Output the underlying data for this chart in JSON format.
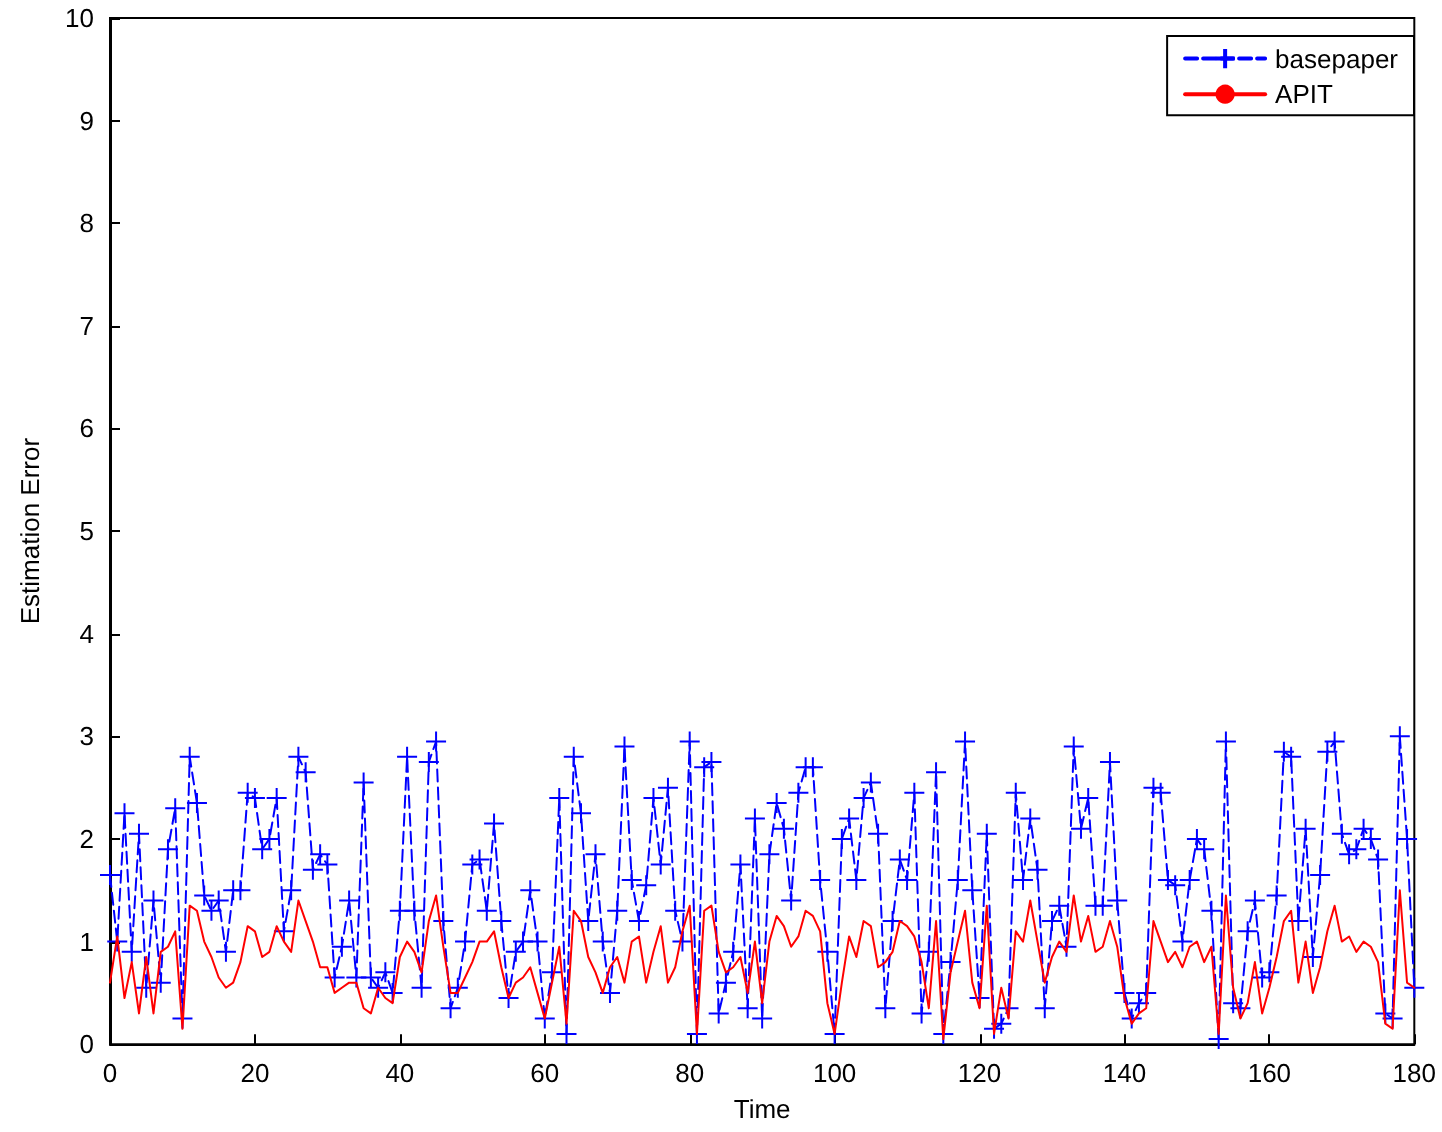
{
  "chart_data": {
    "type": "line",
    "xlabel": "Time",
    "ylabel": "Estimation Error",
    "x": [
      0,
      1,
      2,
      3,
      4,
      5,
      6,
      7,
      8,
      9,
      10,
      11,
      12,
      13,
      14,
      15,
      16,
      17,
      18,
      19,
      20,
      21,
      22,
      23,
      24,
      25,
      26,
      27,
      28,
      29,
      30,
      31,
      32,
      33,
      34,
      35,
      36,
      37,
      38,
      39,
      40,
      41,
      42,
      43,
      44,
      45,
      46,
      47,
      48,
      49,
      50,
      51,
      52,
      53,
      54,
      55,
      56,
      57,
      58,
      59,
      60,
      61,
      62,
      63,
      64,
      65,
      66,
      67,
      68,
      69,
      70,
      71,
      72,
      73,
      74,
      75,
      76,
      77,
      78,
      79,
      80,
      81,
      82,
      83,
      84,
      85,
      86,
      87,
      88,
      89,
      90,
      91,
      92,
      93,
      94,
      95,
      96,
      97,
      98,
      99,
      100,
      101,
      102,
      103,
      104,
      105,
      106,
      107,
      108,
      109,
      110,
      111,
      112,
      113,
      114,
      115,
      116,
      117,
      118,
      119,
      120,
      121,
      122,
      123,
      124,
      125,
      126,
      127,
      128,
      129,
      130,
      131,
      132,
      133,
      134,
      135,
      136,
      137,
      138,
      139,
      140,
      141,
      142,
      143,
      144,
      145,
      146,
      147,
      148,
      149,
      150,
      151,
      152,
      153,
      154,
      155,
      156,
      157,
      158,
      159,
      160,
      161,
      162,
      163,
      164,
      165,
      166,
      167,
      168,
      169,
      170,
      171,
      172,
      173,
      174,
      175,
      176,
      177,
      178,
      179,
      180
    ],
    "series": [
      {
        "name": "basepaper",
        "color": "#0000ff",
        "line_style": "dashed",
        "marker": "cross",
        "values": [
          1.65,
          1.0,
          2.25,
          0.9,
          2.05,
          0.55,
          1.4,
          0.6,
          1.9,
          2.3,
          0.25,
          2.8,
          2.35,
          1.45,
          1.3,
          1.4,
          0.9,
          1.5,
          1.5,
          2.45,
          2.4,
          1.9,
          2.0,
          2.4,
          1.1,
          1.5,
          2.8,
          2.65,
          1.7,
          1.85,
          1.75,
          0.65,
          0.95,
          1.4,
          0.65,
          2.55,
          0.65,
          0.55,
          0.7,
          0.5,
          1.3,
          2.8,
          1.3,
          0.55,
          2.75,
          2.95,
          1.2,
          0.35,
          0.55,
          1.0,
          1.75,
          1.8,
          1.3,
          2.15,
          1.2,
          0.45,
          0.9,
          1.0,
          1.5,
          1.0,
          0.25,
          0.7,
          2.4,
          0.1,
          2.8,
          2.25,
          1.2,
          1.85,
          1.0,
          0.5,
          1.3,
          2.9,
          1.6,
          1.2,
          1.55,
          2.4,
          1.75,
          2.5,
          1.3,
          1.0,
          2.95,
          0.1,
          2.7,
          2.75,
          0.3,
          0.6,
          0.9,
          1.75,
          0.35,
          2.2,
          0.25,
          1.85,
          2.35,
          2.1,
          1.4,
          2.45,
          2.7,
          2.7,
          1.6,
          0.9,
          0.1,
          2.0,
          2.2,
          1.6,
          2.4,
          2.55,
          2.05,
          0.35,
          1.2,
          1.8,
          1.6,
          2.45,
          0.3,
          0.9,
          2.65,
          0.1,
          0.8,
          1.6,
          2.95,
          1.5,
          0.45,
          2.05,
          0.15,
          0.2,
          0.35,
          2.45,
          1.6,
          2.2,
          1.7,
          0.35,
          1.2,
          1.35,
          0.95,
          2.9,
          2.1,
          2.4,
          1.35,
          1.35,
          2.75,
          1.4,
          0.5,
          0.25,
          0.4,
          0.5,
          2.5,
          2.45,
          1.6,
          1.55,
          1.0,
          1.6,
          2.0,
          1.9,
          1.3,
          0.05,
          2.95,
          0.4,
          0.35,
          1.1,
          1.4,
          0.65,
          0.7,
          1.45,
          2.85,
          2.8,
          1.2,
          2.1,
          0.85,
          1.65,
          2.85,
          2.95,
          2.05,
          1.85,
          1.9,
          2.1,
          2.0,
          1.8,
          0.3,
          0.25,
          3.0,
          2.0,
          0.55
        ]
      },
      {
        "name": "APIT",
        "color": "#ff0000",
        "line_style": "solid",
        "marker": "none",
        "values": [
          0.6,
          1.05,
          0.45,
          0.8,
          0.3,
          0.85,
          0.3,
          0.9,
          0.95,
          1.1,
          0.15,
          1.35,
          1.3,
          1.0,
          0.85,
          0.65,
          0.55,
          0.6,
          0.8,
          1.15,
          1.1,
          0.85,
          0.9,
          1.15,
          1.0,
          0.9,
          1.4,
          1.2,
          1.0,
          0.75,
          0.75,
          0.5,
          0.55,
          0.6,
          0.6,
          0.35,
          0.3,
          0.55,
          0.45,
          0.4,
          0.85,
          1.0,
          0.9,
          0.7,
          1.2,
          1.45,
          0.95,
          0.5,
          0.5,
          0.65,
          0.8,
          1.0,
          1.0,
          1.1,
          0.75,
          0.45,
          0.6,
          0.65,
          0.75,
          0.5,
          0.25,
          0.6,
          0.95,
          0.2,
          1.3,
          1.2,
          0.85,
          0.7,
          0.5,
          0.75,
          0.85,
          0.6,
          1.0,
          1.05,
          0.6,
          0.9,
          1.15,
          0.6,
          0.75,
          1.1,
          1.35,
          0.1,
          1.3,
          1.35,
          0.9,
          0.7,
          0.75,
          0.85,
          0.5,
          1.0,
          0.4,
          1.0,
          1.25,
          1.15,
          0.95,
          1.05,
          1.3,
          1.25,
          1.1,
          0.4,
          0.1,
          0.6,
          1.05,
          0.85,
          1.2,
          1.15,
          0.75,
          0.8,
          0.9,
          1.2,
          1.15,
          1.05,
          0.8,
          0.35,
          1.2,
          0.05,
          0.7,
          1.0,
          1.3,
          0.6,
          0.35,
          1.35,
          0.1,
          0.55,
          0.25,
          1.1,
          1.0,
          1.4,
          1.0,
          0.6,
          0.85,
          1.0,
          0.9,
          1.45,
          1.0,
          1.25,
          0.9,
          0.95,
          1.2,
          0.95,
          0.45,
          0.2,
          0.3,
          0.35,
          1.2,
          1.0,
          0.8,
          0.9,
          0.75,
          0.95,
          1.0,
          0.8,
          0.95,
          0.1,
          1.45,
          0.55,
          0.25,
          0.4,
          0.8,
          0.3,
          0.55,
          0.85,
          1.2,
          1.3,
          0.6,
          1.0,
          0.5,
          0.75,
          1.1,
          1.35,
          1.0,
          1.05,
          0.9,
          1.0,
          0.95,
          0.8,
          0.2,
          0.15,
          1.5,
          0.6,
          0.55
        ]
      }
    ],
    "xlim": [
      0,
      180
    ],
    "xticks": [
      0,
      20,
      40,
      60,
      80,
      100,
      120,
      140,
      160,
      180
    ],
    "ylim": [
      0,
      10
    ],
    "yticks": [
      0,
      1,
      2,
      3,
      4,
      5,
      6,
      7,
      8,
      9,
      10
    ],
    "grid": false,
    "legend": "top right"
  }
}
